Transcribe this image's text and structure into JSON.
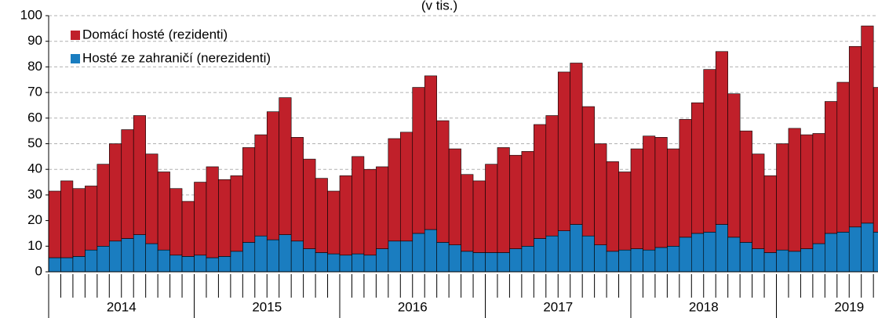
{
  "chart_data": {
    "type": "stacked_bar",
    "title": "(v tis.)",
    "categories": [
      null,
      null,
      null,
      null,
      null,
      null,
      null,
      null,
      null,
      null,
      null,
      null,
      null,
      null,
      null,
      null,
      null,
      null,
      null,
      null,
      null,
      null,
      null,
      null,
      null,
      null,
      null,
      null,
      null,
      null,
      null,
      null,
      null,
      null,
      null,
      null,
      null,
      null,
      null,
      null,
      null,
      null,
      null,
      null,
      null,
      null,
      null,
      null,
      null,
      null,
      null,
      null,
      null,
      null,
      null,
      null,
      null,
      null,
      null,
      null,
      null,
      null,
      null,
      null,
      null,
      null,
      null,
      null,
      null
    ],
    "year_labels": [
      "2014",
      "2015",
      "2016",
      "2017",
      "2018",
      "2019"
    ],
    "series": [
      {
        "name": "Domácí hosté (rezidenti)",
        "color": "#c0202a",
        "values": [
          26,
          30,
          26.5,
          25,
          32,
          38,
          42.5,
          46.5,
          35,
          30.5,
          26,
          21.5,
          28.5,
          35.5,
          30,
          29.5,
          37,
          39.5,
          50,
          53.5,
          40.5,
          35,
          29,
          24.5,
          31,
          38,
          33.5,
          32,
          40,
          42.5,
          57,
          60,
          47.5,
          37.5,
          30,
          28,
          34.5,
          41,
          36.5,
          37,
          44.5,
          47,
          62,
          63,
          50.5,
          39.5,
          35,
          30.5,
          39,
          44.5,
          43,
          38,
          46,
          51,
          63.5,
          67.5,
          56,
          43.5,
          37,
          30,
          41.5,
          48,
          44.5,
          43,
          51.5,
          58.5,
          70.5,
          77,
          56.5
        ]
      },
      {
        "name": "Hosté ze zahraničí (nerezidenti)",
        "color": "#1a7dc0",
        "values": [
          5.5,
          5.5,
          6,
          8.5,
          10,
          12,
          13,
          14.5,
          11,
          8.5,
          6.5,
          6,
          6.5,
          5.5,
          6,
          8,
          11.5,
          14,
          12.5,
          14.5,
          12,
          9,
          7.5,
          7,
          6.5,
          7,
          6.5,
          9,
          12,
          12,
          15,
          16.5,
          11.5,
          10.5,
          8,
          7.5,
          7.5,
          7.5,
          9,
          10,
          13,
          14,
          16,
          18.5,
          14,
          10.5,
          8,
          8.5,
          9,
          8.5,
          9.5,
          10,
          13.5,
          15,
          15.5,
          18.5,
          13.5,
          11.5,
          9,
          7.5,
          8.5,
          8,
          9,
          11,
          15,
          15.5,
          17.5,
          19,
          15.5
        ]
      }
    ],
    "ylim": [
      0,
      100
    ],
    "yticks": [
      0,
      10,
      20,
      30,
      40,
      50,
      60,
      70,
      80,
      90,
      100
    ],
    "grid": true,
    "legend": "upper left"
  }
}
